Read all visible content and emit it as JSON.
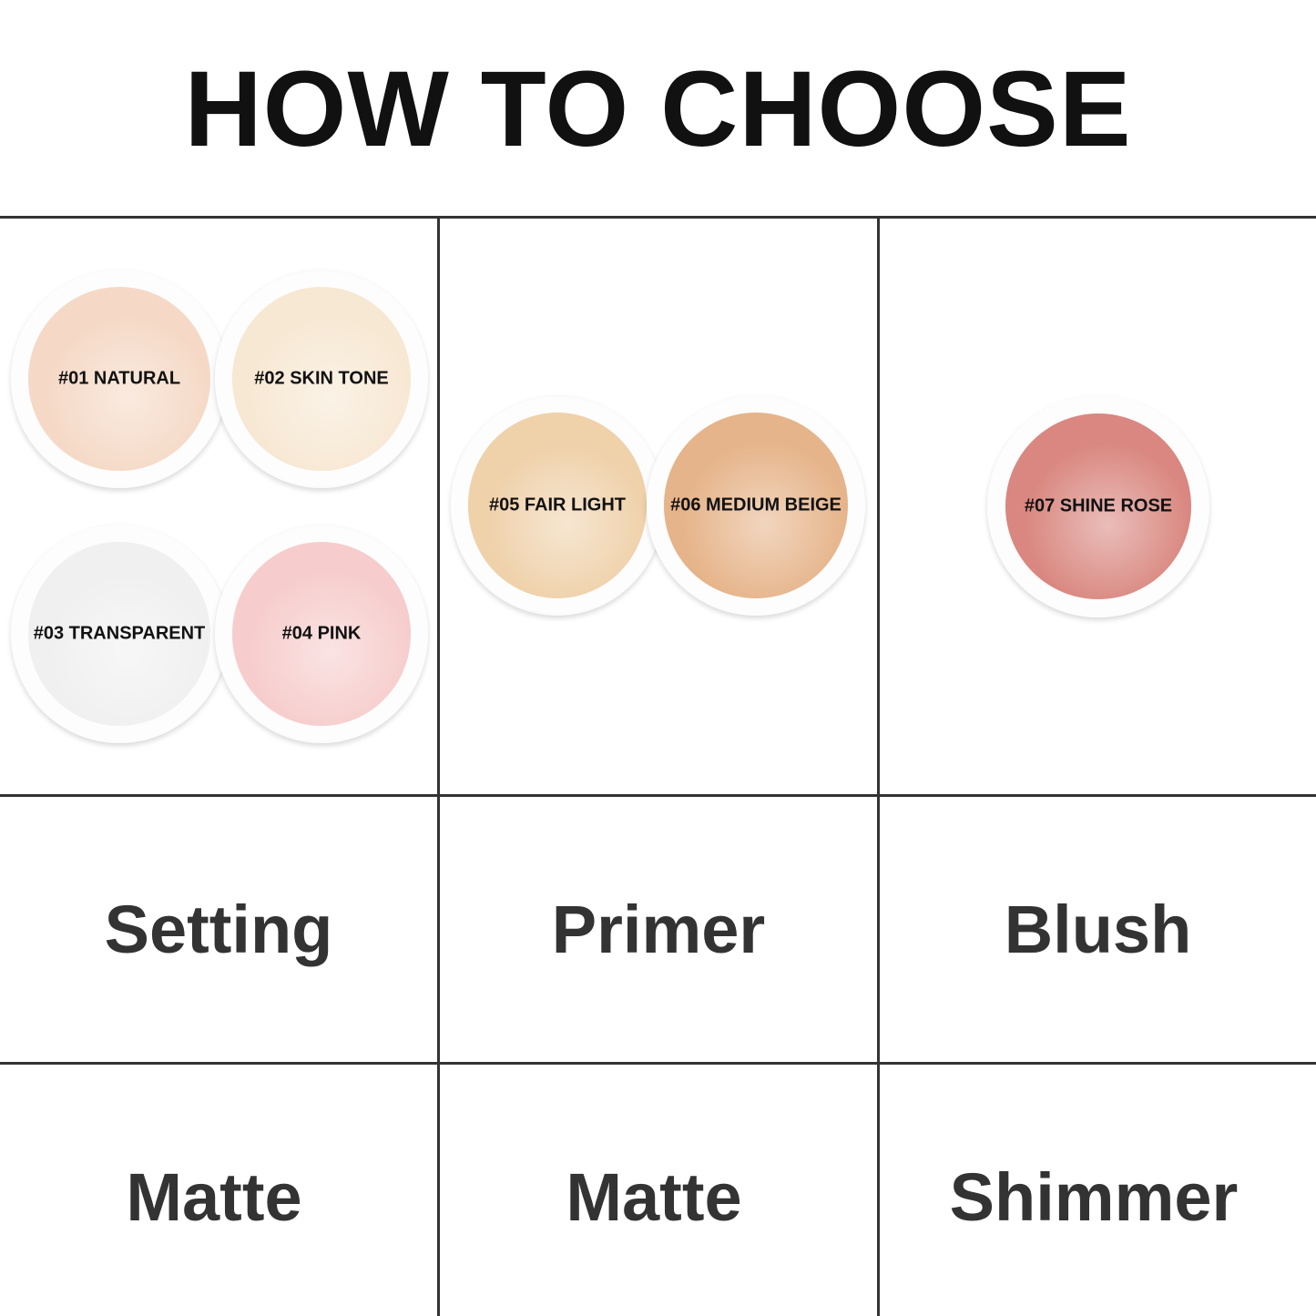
{
  "title": "HOW TO CHOOSE",
  "shades": [
    {
      "label": "#01 NATURAL",
      "color": "#f5d9c6"
    },
    {
      "label": "#02 SKIN TONE",
      "color": "#f7e8d3"
    },
    {
      "label": "#03 TRANSPARENT",
      "color": "#f0f0f0"
    },
    {
      "label": "#04 PINK",
      "color": "#f6cdcc"
    },
    {
      "label": "#05 FAIR LIGHT",
      "color": "#efd1aa"
    },
    {
      "label": "#06 MEDIUM BEIGE",
      "color": "#e6b48a"
    },
    {
      "label": "#07 SHINE ROSE",
      "color": "#d98780"
    }
  ],
  "uses": [
    "Setting",
    "Primer",
    "Blush"
  ],
  "finishes": [
    "Matte",
    "Matte",
    "Shimmer"
  ]
}
